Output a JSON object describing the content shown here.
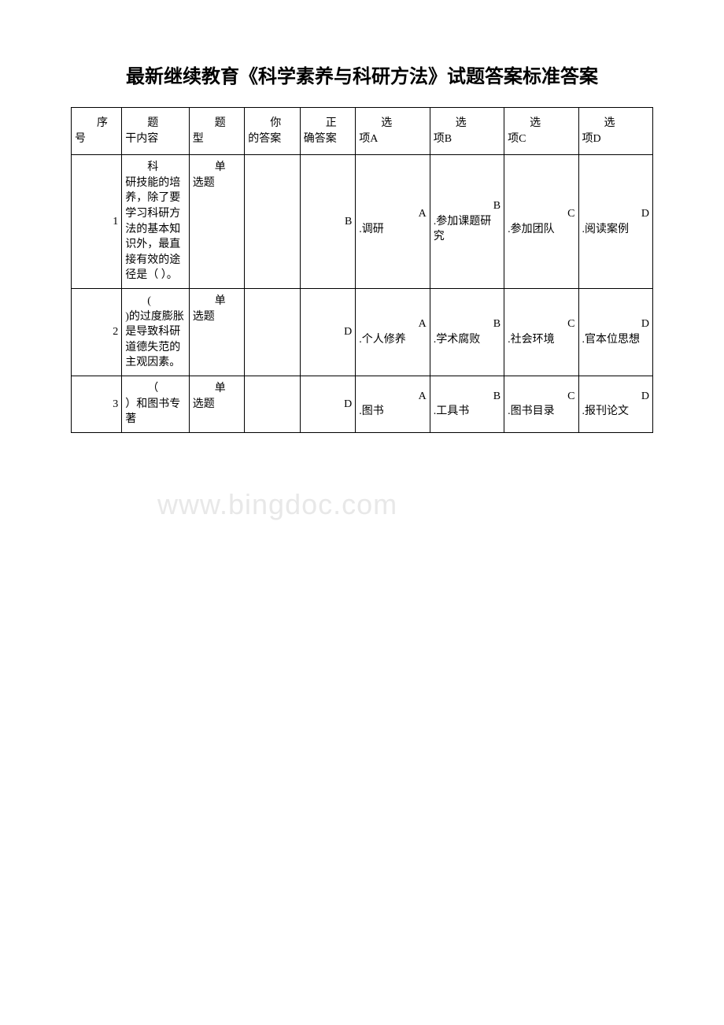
{
  "page": {
    "title": "最新继续教育《科学素养与科研方法》试题答案标准答案",
    "watermark": "www.bingdoc.com",
    "background_color": "#ffffff",
    "border_color": "#000000",
    "title_fontsize": 24,
    "cell_fontsize": 14,
    "watermark_color": "#e8e8e8"
  },
  "table": {
    "columns": {
      "seq": {
        "cn": "序",
        "label": "号"
      },
      "content": {
        "cn": "题",
        "label": "干内容"
      },
      "type": {
        "cn": "题",
        "label": "型"
      },
      "your_answer": {
        "cn": "你",
        "label": "的答案"
      },
      "correct_answer": {
        "cn": "正",
        "label": "确答案"
      },
      "opt_a": {
        "cn": "选",
        "label": "项A"
      },
      "opt_b": {
        "cn": "选",
        "label": "项B"
      },
      "opt_c": {
        "cn": "选",
        "label": "项C"
      },
      "opt_d": {
        "cn": "选",
        "label": "项D"
      }
    },
    "rows": [
      {
        "seq": "1",
        "content_first": "科",
        "content_rest": "研技能的培养，除了要学习科研方法的基本知识外，最直接有效的途径是（ ）。",
        "type_first": "单",
        "type_rest": "选题",
        "your_answer": "",
        "correct_answer": "B",
        "opt_a_letter": "A",
        "opt_a_text": ".调研",
        "opt_b_letter": "B",
        "opt_b_text": ".参加课题研究",
        "opt_c_letter": "C",
        "opt_c_text": ".参加团队",
        "opt_d_letter": "D",
        "opt_d_text": ".阅读案例"
      },
      {
        "seq": "2",
        "content_first": "(",
        "content_rest": ")的过度膨胀是导致科研道德失范的主观因素。",
        "type_first": "单",
        "type_rest": "选题",
        "your_answer": "",
        "correct_answer": "D",
        "opt_a_letter": "A",
        "opt_a_text": ".个人修养",
        "opt_b_letter": "B",
        "opt_b_text": ".学术腐败",
        "opt_c_letter": "C",
        "opt_c_text": ".社会环境",
        "opt_d_letter": "D",
        "opt_d_text": ".官本位思想"
      },
      {
        "seq": "3",
        "content_first": "（",
        "content_rest": "）和图书专著",
        "type_first": "单",
        "type_rest": "选题",
        "your_answer": "",
        "correct_answer": "D",
        "opt_a_letter": "A",
        "opt_a_text": ".图书",
        "opt_b_letter": "B",
        "opt_b_text": ".工具书",
        "opt_c_letter": "C",
        "opt_c_text": ".图书目录",
        "opt_d_letter": "D",
        "opt_d_text": ".报刊论文"
      }
    ]
  }
}
